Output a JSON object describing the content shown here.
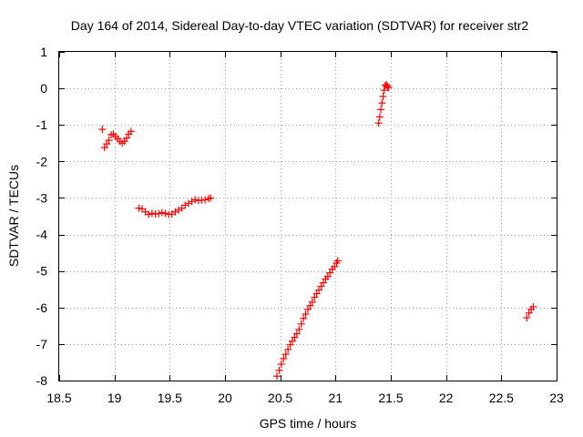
{
  "chart_data": {
    "type": "scatter",
    "title": "Day 164 of 2014, Sidereal Day-to-day VTEC variation (SDTVAR) for receiver str2",
    "xlabel": "GPS time / hours",
    "ylabel": "SDTVAR / TECUs",
    "xlim": [
      18.5,
      23
    ],
    "ylim": [
      -8,
      1
    ],
    "xticks": [
      18.5,
      19,
      19.5,
      20,
      20.5,
      21,
      21.5,
      22,
      22.5,
      23
    ],
    "yticks": [
      1,
      0,
      -1,
      -2,
      -3,
      -4,
      -5,
      -6,
      -7,
      -8
    ],
    "xtick_labels": [
      "18.5",
      "19",
      "19.5",
      "20",
      "20.5",
      "21",
      "21.5",
      "22",
      "22.5",
      "23"
    ],
    "ytick_labels": [
      "1",
      "0",
      "-1",
      "-2",
      "-3",
      "-4",
      "-5",
      "-6",
      "-7",
      "-8"
    ],
    "grid": true,
    "marker": "plus",
    "marker_color": "#ff0000",
    "series": [
      {
        "points": [
          [
            18.89,
            -1.12
          ],
          [
            18.91,
            -1.62
          ],
          [
            18.93,
            -1.52
          ],
          [
            18.95,
            -1.42
          ],
          [
            18.97,
            -1.27
          ],
          [
            18.99,
            -1.25
          ],
          [
            19.01,
            -1.32
          ],
          [
            19.03,
            -1.38
          ],
          [
            19.05,
            -1.45
          ],
          [
            19.07,
            -1.5
          ],
          [
            19.09,
            -1.45
          ],
          [
            19.11,
            -1.36
          ],
          [
            19.13,
            -1.25
          ],
          [
            19.15,
            -1.18
          ],
          [
            19.22,
            -3.28
          ],
          [
            19.25,
            -3.3
          ],
          [
            19.28,
            -3.38
          ],
          [
            19.31,
            -3.45
          ],
          [
            19.34,
            -3.42
          ],
          [
            19.37,
            -3.44
          ],
          [
            19.4,
            -3.43
          ],
          [
            19.43,
            -3.4
          ],
          [
            19.46,
            -3.42
          ],
          [
            19.49,
            -3.45
          ],
          [
            19.52,
            -3.44
          ],
          [
            19.55,
            -3.38
          ],
          [
            19.58,
            -3.33
          ],
          [
            19.61,
            -3.28
          ],
          [
            19.64,
            -3.2
          ],
          [
            19.67,
            -3.15
          ],
          [
            19.7,
            -3.1
          ],
          [
            19.73,
            -3.05
          ],
          [
            19.76,
            -3.07
          ],
          [
            19.79,
            -3.06
          ],
          [
            19.82,
            -3.05
          ],
          [
            19.85,
            -3.02
          ],
          [
            19.87,
            -3.0
          ],
          [
            20.47,
            -7.88
          ],
          [
            20.49,
            -7.72
          ],
          [
            20.51,
            -7.55
          ],
          [
            20.53,
            -7.4
          ],
          [
            20.55,
            -7.28
          ],
          [
            20.57,
            -7.15
          ],
          [
            20.59,
            -7.02
          ],
          [
            20.61,
            -6.92
          ],
          [
            20.63,
            -6.82
          ],
          [
            20.65,
            -6.72
          ],
          [
            20.67,
            -6.6
          ],
          [
            20.69,
            -6.45
          ],
          [
            20.71,
            -6.3
          ],
          [
            20.73,
            -6.18
          ],
          [
            20.75,
            -6.05
          ],
          [
            20.77,
            -5.95
          ],
          [
            20.79,
            -5.85
          ],
          [
            20.81,
            -5.72
          ],
          [
            20.83,
            -5.62
          ],
          [
            20.85,
            -5.52
          ],
          [
            20.87,
            -5.42
          ],
          [
            20.89,
            -5.32
          ],
          [
            20.91,
            -5.22
          ],
          [
            20.93,
            -5.15
          ],
          [
            20.95,
            -5.05
          ],
          [
            20.97,
            -4.95
          ],
          [
            20.99,
            -4.88
          ],
          [
            21.01,
            -4.78
          ],
          [
            21.02,
            -4.72
          ],
          [
            21.39,
            -0.95
          ],
          [
            21.4,
            -0.78
          ],
          [
            21.41,
            -0.58
          ],
          [
            21.42,
            -0.4
          ],
          [
            21.43,
            -0.22
          ],
          [
            21.44,
            -0.05
          ],
          [
            21.45,
            0.08
          ],
          [
            21.46,
            0.1
          ],
          [
            21.47,
            0.06
          ],
          [
            21.48,
            0.02
          ],
          [
            22.73,
            -6.28
          ],
          [
            22.75,
            -6.15
          ],
          [
            22.77,
            -6.05
          ],
          [
            22.79,
            -5.98
          ]
        ]
      }
    ]
  }
}
